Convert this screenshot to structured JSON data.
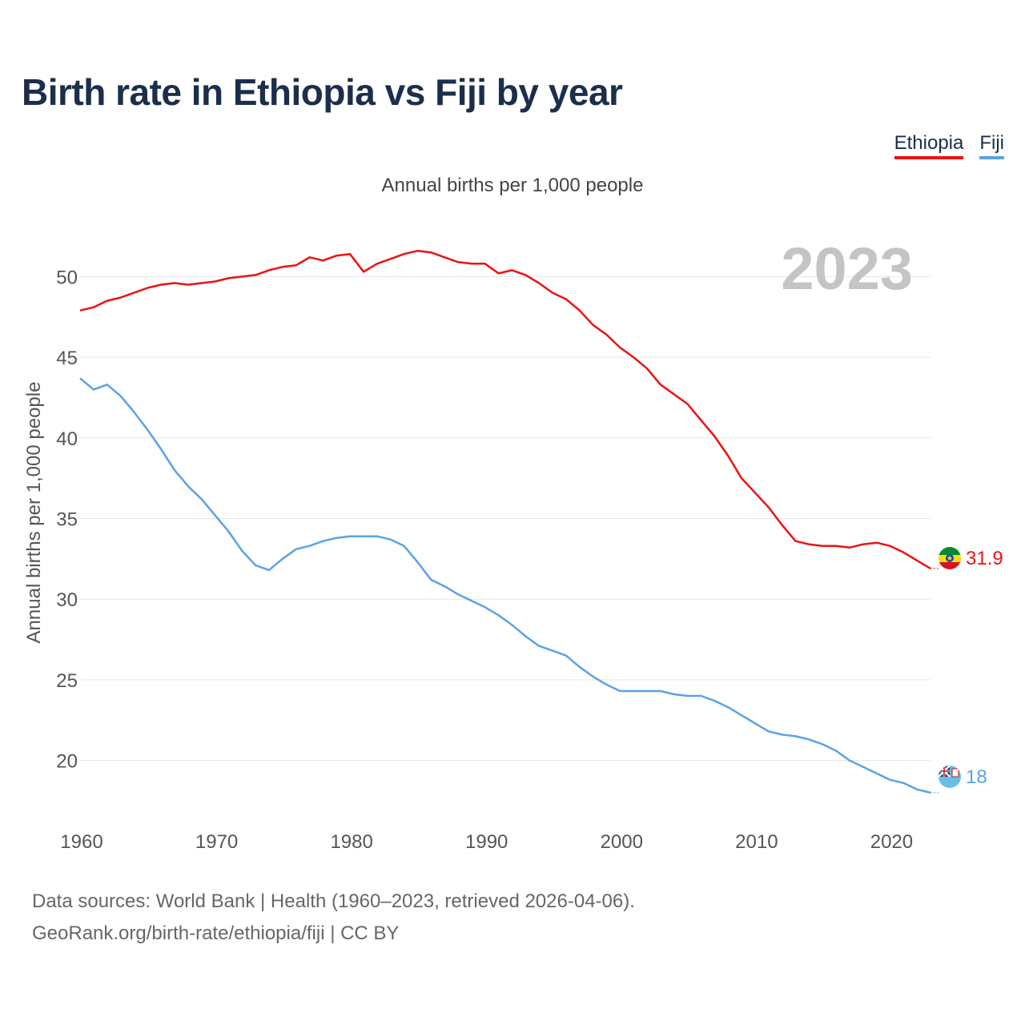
{
  "title": "Birth rate in Ethiopia vs Fiji by year",
  "subtitle": "Annual births per 1,000 people",
  "legend": {
    "ethiopia": "Ethiopia",
    "fiji": "Fiji"
  },
  "year_label": "2023",
  "end_labels": {
    "ethiopia": "31.9",
    "fiji": "18"
  },
  "source_line1": "Data sources: World Bank | Health (1960–2023, retrieved 2026-04-06).",
  "source_line2": "GeoRank.org/birth-rate/ethiopia/fiji | CC BY",
  "colors": {
    "ethiopia": "#ee1111",
    "fiji": "#5aa2e8",
    "title": "#1b2e4b",
    "grid": "#e6e6e6",
    "year": "#c4c4c4"
  },
  "chart_data": {
    "type": "line",
    "title": "Birth rate in Ethiopia vs Fiji by year",
    "ylabel": "Annual births per 1,000 people",
    "xlabel": "",
    "xlim": [
      1960,
      2023
    ],
    "ylim": [
      17,
      53
    ],
    "xticks": [
      1960,
      1970,
      1980,
      1990,
      2000,
      2010,
      2020
    ],
    "yticks": [
      20,
      25,
      30,
      35,
      40,
      45,
      50
    ],
    "x": [
      1960,
      1961,
      1962,
      1963,
      1964,
      1965,
      1966,
      1967,
      1968,
      1969,
      1970,
      1971,
      1972,
      1973,
      1974,
      1975,
      1976,
      1977,
      1978,
      1979,
      1980,
      1981,
      1982,
      1983,
      1984,
      1985,
      1986,
      1987,
      1988,
      1989,
      1990,
      1991,
      1992,
      1993,
      1994,
      1995,
      1996,
      1997,
      1998,
      1999,
      2000,
      2001,
      2002,
      2003,
      2004,
      2005,
      2006,
      2007,
      2008,
      2009,
      2010,
      2011,
      2012,
      2013,
      2014,
      2015,
      2016,
      2017,
      2018,
      2019,
      2020,
      2021,
      2022,
      2023
    ],
    "series": [
      {
        "name": "Ethiopia",
        "values": [
          47.9,
          48.1,
          48.5,
          48.7,
          49.0,
          49.3,
          49.5,
          49.6,
          49.5,
          49.6,
          49.7,
          49.9,
          50.0,
          50.1,
          50.4,
          50.6,
          50.7,
          51.2,
          51.0,
          51.3,
          51.4,
          50.3,
          50.8,
          51.1,
          51.4,
          51.6,
          51.5,
          51.2,
          50.9,
          50.8,
          50.8,
          50.2,
          50.4,
          50.1,
          49.6,
          49.0,
          48.6,
          47.9,
          47.0,
          46.4,
          45.6,
          45.0,
          44.3,
          43.3,
          42.7,
          42.1,
          41.1,
          40.1,
          38.9,
          37.5,
          36.6,
          35.7,
          34.6,
          33.6,
          33.4,
          33.3,
          33.3,
          33.2,
          33.4,
          33.5,
          33.3,
          32.9,
          32.4,
          31.9
        ]
      },
      {
        "name": "Fiji",
        "values": [
          43.7,
          43.0,
          43.3,
          42.6,
          41.6,
          40.5,
          39.3,
          38.0,
          37.0,
          36.2,
          35.2,
          34.2,
          33.0,
          32.1,
          31.8,
          32.5,
          33.1,
          33.3,
          33.6,
          33.8,
          33.9,
          33.9,
          33.9,
          33.7,
          33.3,
          32.3,
          31.2,
          30.8,
          30.3,
          29.9,
          29.5,
          29.0,
          28.4,
          27.7,
          27.1,
          26.8,
          26.5,
          25.8,
          25.2,
          24.7,
          24.3,
          24.3,
          24.3,
          24.3,
          24.1,
          24.0,
          24.0,
          23.7,
          23.3,
          22.8,
          22.3,
          21.8,
          21.6,
          21.5,
          21.3,
          21.0,
          20.6,
          20.0,
          19.6,
          19.2,
          18.8,
          18.6,
          18.2,
          18.0
        ]
      }
    ]
  }
}
